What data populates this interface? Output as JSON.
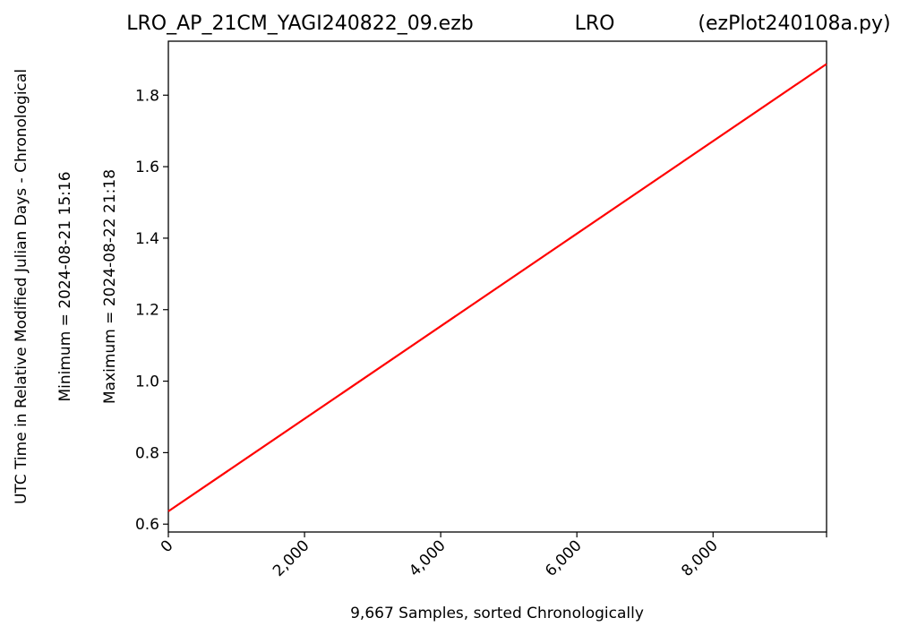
{
  "title": {
    "file": "LRO_AP_21CM_YAGI240822_09.ezb",
    "station": "LRO",
    "program": "(ezPlot240108a.py)"
  },
  "axes": {
    "ylabel_main": "UTC Time in Relative Modified Julian Days - Chronological",
    "ylabel_min": "Minimum = 2024-08-21   15:16",
    "ylabel_max": "Maximum = 2024-08-22   21:18",
    "xlabel": "9,667 Samples, sorted Chronologically"
  },
  "chart_data": {
    "type": "line",
    "x_ticks": [
      0,
      2000,
      4000,
      6000,
      8000
    ],
    "x_tick_labels": [
      "0",
      "2,000",
      "4,000",
      "6,000",
      "8,000"
    ],
    "y_ticks": [
      0.6,
      0.8,
      1.0,
      1.2,
      1.4,
      1.6,
      1.8
    ],
    "y_tick_labels": [
      "0.6",
      "0.8",
      "1.0",
      "1.2",
      "1.4",
      "1.6",
      "1.8"
    ],
    "xlim": [
      0,
      9667
    ],
    "ylim": [
      0.578,
      1.951
    ],
    "grid": false,
    "series": [
      {
        "color": "#ff0000",
        "x": [
          0,
          9666
        ],
        "y": [
          0.636,
          1.887
        ]
      }
    ]
  }
}
